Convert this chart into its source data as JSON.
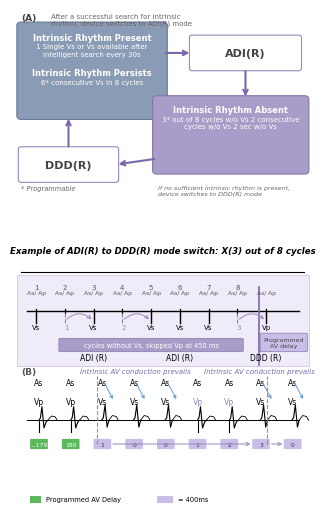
{
  "title_A": "(A)",
  "subtitle_A": "After a successful search for intrinsic\nrhythm, device switches to ADI(R) mode",
  "box_adir_text": "ADI(R)",
  "box_dddr_text": "DDD(R)",
  "note_prog": "* Programmable",
  "note_absent": "If no sufficient intrinsic rhythm is present,\ndevice switches to DDD(R) mode",
  "example_title": "Example of ADI(R) to DDD(R) mode switch: X(3) out of 8 cycles",
  "cycle_labels": [
    "1",
    "2",
    "3",
    "4",
    "5",
    "6",
    "7",
    "8"
  ],
  "top_labels": [
    "As/ Ap",
    "As/ Ap",
    "As/ Ap",
    "As/ Ap",
    "As/ Ap",
    "As/ Ap",
    "As/ Ap",
    "As/ Ap",
    "As/ Ap"
  ],
  "adir_label1": "ADI (R)",
  "adir_label2": "ADI (R)",
  "dddr_label": "DDD (R)",
  "cycles_box_text": "cycles without Vs, skipped Vp at 450 ms",
  "prog_av_text": "Programmed\nAV delay",
  "color_purple_dark": "#7B68AB",
  "color_purple_light": "#C8BEE8",
  "color_box1_bg": "#8A9BB5",
  "color_absent_bg": "#A89CC8",
  "color_green": "#5CB85C",
  "title_B": "(B)",
  "intrinsic_label1": "Intrinsic AV conduction prevails",
  "intrinsic_label2": "Intrinsic AV conduction prevails",
  "as_labels_B": [
    "As",
    "As",
    "As",
    "As",
    "As",
    "As",
    "As",
    "As",
    "As"
  ],
  "v_labels_B": [
    "Vp",
    "Vp",
    "Vs",
    "Vs",
    "Vs",
    "Vp",
    "Vp",
    "Vs",
    "Vs"
  ],
  "counter_labels_B": [
    "...179",
    "180",
    "1",
    "0",
    "0",
    "1",
    "2",
    "3",
    "0"
  ],
  "legend_green": "Programmed AV Delay",
  "legend_purple": "= 400ms"
}
